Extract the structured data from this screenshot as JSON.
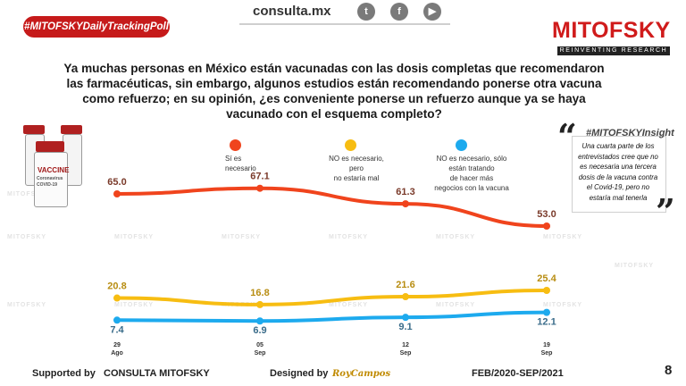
{
  "header": {
    "site": "consulta.mx",
    "social": [
      "t",
      "f",
      "▶"
    ],
    "hashtag": "#MITOFSKYDailyTrackingPoll",
    "logo": "MITOFSKY",
    "logo_sub": "REINVENTING RESEARCH"
  },
  "question": "Ya muchas personas en México están vacunadas con las dosis completas que recomendaron las farmacéuticas, sin embargo, algunos estudios están recomendando ponerse otra vacuna como refuerzo; en su opinión, ¿es conveniente ponerse un refuerzo aunque ya se haya vacunado con el esquema completo?",
  "vaccine": {
    "label": "VACCINE",
    "sub": "Coronavirus COVID-19"
  },
  "watermark": "MITOFSKY",
  "insight": {
    "tag": "#MITOFSKYInsight",
    "text": "Una cuarta parte de los entrevistados cree que no es necesaria una tercera dosis de la vacuna contra el Covid-19, pero no estaría mal tenerla"
  },
  "chart_data": {
    "type": "line",
    "categories": [
      {
        "day": "29",
        "month": "Ago"
      },
      {
        "day": "05",
        "month": "Sep"
      },
      {
        "day": "12",
        "month": "Sep"
      },
      {
        "day": "19",
        "month": "Sep"
      }
    ],
    "series": [
      {
        "name": "Sí es necesario",
        "color": "#f0441d",
        "values": [
          65.0,
          67.1,
          61.3,
          53.0
        ],
        "labels": [
          "65.0",
          "67.1",
          "61.3",
          "53.0"
        ],
        "label_color": "#7a3a2a"
      },
      {
        "name": "NO es necesario, pero no estaría mal",
        "color": "#f7bd12",
        "values": [
          20.8,
          16.8,
          21.6,
          25.4
        ],
        "labels": [
          "20.8",
          "16.8",
          "21.6",
          "25.4"
        ],
        "label_color": "#b88d12"
      },
      {
        "name": "NO es necesario, sólo están tratando de hacer más negocios con la vacuna",
        "color": "#1daaee",
        "values": [
          7.4,
          6.9,
          9.1,
          12.1
        ],
        "labels": [
          "7.4",
          "6.9",
          "9.1",
          "12.1"
        ],
        "label_color": "#3a6c8a"
      }
    ],
    "legend": [
      {
        "lines": [
          "Sí es",
          "necesario"
        ]
      },
      {
        "lines": [
          "NO es necesario,",
          "pero",
          "no estaría mal"
        ]
      },
      {
        "lines": [
          "NO es necesario, sólo",
          "están tratando",
          "de hacer más",
          "negocios con la vacuna"
        ]
      }
    ],
    "ylim": [
      0,
      80
    ]
  },
  "footer": {
    "supported": "Supported by",
    "sponsor": "CONSULTA  MITOFSKY",
    "designed": "Designed by",
    "designer": "RoyCampos",
    "period": "FEB/2020-SEP/2021",
    "page": "8"
  }
}
